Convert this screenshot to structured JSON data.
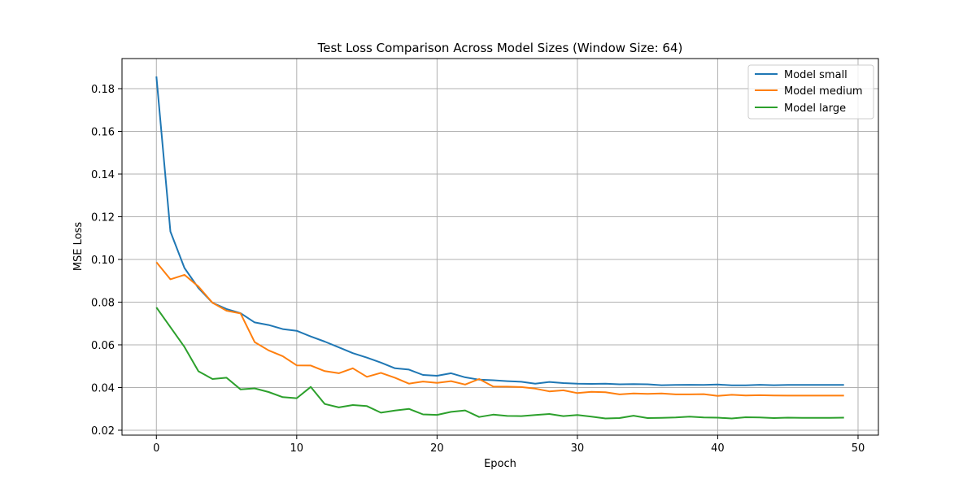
{
  "chart_data": {
    "type": "line",
    "title": "Test Loss Comparison Across Model Sizes (Window Size: 64)",
    "xlabel": "Epoch",
    "ylabel": "MSE Loss",
    "xlim": [
      -2.45,
      51.45
    ],
    "ylim": [
      0.0177,
      0.1941
    ],
    "xticks": [
      0,
      10,
      20,
      30,
      40,
      50
    ],
    "yticks": [
      0.02,
      0.04,
      0.06,
      0.08,
      0.1,
      0.12,
      0.14,
      0.16,
      0.18
    ],
    "xtick_labels": [
      "0",
      "10",
      "20",
      "30",
      "40",
      "50"
    ],
    "ytick_labels": [
      "0.02",
      "0.04",
      "0.06",
      "0.08",
      "0.10",
      "0.12",
      "0.14",
      "0.16",
      "0.18"
    ],
    "grid": true,
    "legend_position": "top-right",
    "x": [
      0,
      1,
      2,
      3,
      4,
      5,
      6,
      7,
      8,
      9,
      10,
      11,
      12,
      13,
      14,
      15,
      16,
      17,
      18,
      19,
      20,
      21,
      22,
      23,
      24,
      25,
      26,
      27,
      28,
      29,
      30,
      31,
      32,
      33,
      34,
      35,
      36,
      37,
      38,
      39,
      40,
      41,
      42,
      43,
      44,
      45,
      46,
      47,
      48,
      49
    ],
    "series": [
      {
        "name": "Model small",
        "color": "#1f77b4",
        "values": [
          0.1857,
          0.1131,
          0.096,
          0.0866,
          0.0797,
          0.0768,
          0.0748,
          0.0705,
          0.0693,
          0.0674,
          0.0666,
          0.0639,
          0.0615,
          0.0588,
          0.0561,
          0.054,
          0.0517,
          0.049,
          0.0484,
          0.0459,
          0.0455,
          0.0467,
          0.0448,
          0.0437,
          0.0434,
          0.043,
          0.0427,
          0.0418,
          0.0426,
          0.0421,
          0.0418,
          0.0417,
          0.0418,
          0.0415,
          0.0416,
          0.0415,
          0.0411,
          0.0412,
          0.0413,
          0.0412,
          0.0414,
          0.041,
          0.041,
          0.0413,
          0.0411,
          0.0412,
          0.0412,
          0.0412,
          0.0412,
          0.0412
        ]
      },
      {
        "name": "Model medium",
        "color": "#ff7f0e",
        "values": [
          0.0987,
          0.0907,
          0.0928,
          0.0873,
          0.0797,
          0.076,
          0.0747,
          0.0613,
          0.0574,
          0.0547,
          0.0504,
          0.0503,
          0.0477,
          0.0467,
          0.049,
          0.045,
          0.0469,
          0.0446,
          0.0418,
          0.0428,
          0.0422,
          0.043,
          0.0414,
          0.044,
          0.0405,
          0.0404,
          0.0402,
          0.0395,
          0.0382,
          0.0387,
          0.0374,
          0.038,
          0.0378,
          0.0368,
          0.0372,
          0.037,
          0.0372,
          0.0368,
          0.0368,
          0.0369,
          0.0361,
          0.0366,
          0.0363,
          0.0364,
          0.0363,
          0.0362,
          0.0362,
          0.0362,
          0.0362,
          0.0362
        ]
      },
      {
        "name": "Model large",
        "color": "#2ca02c",
        "values": [
          0.0775,
          0.0683,
          0.059,
          0.0476,
          0.044,
          0.0446,
          0.0391,
          0.0396,
          0.0379,
          0.0355,
          0.035,
          0.0403,
          0.0323,
          0.0307,
          0.0318,
          0.0313,
          0.0282,
          0.0292,
          0.03,
          0.0274,
          0.0272,
          0.0286,
          0.0293,
          0.0262,
          0.0273,
          0.0267,
          0.0266,
          0.0271,
          0.0276,
          0.0266,
          0.0271,
          0.0264,
          0.0255,
          0.0257,
          0.0268,
          0.0257,
          0.0258,
          0.026,
          0.0264,
          0.026,
          0.0259,
          0.0255,
          0.0261,
          0.026,
          0.0257,
          0.0259,
          0.0258,
          0.0258,
          0.0258,
          0.0259
        ]
      }
    ]
  }
}
